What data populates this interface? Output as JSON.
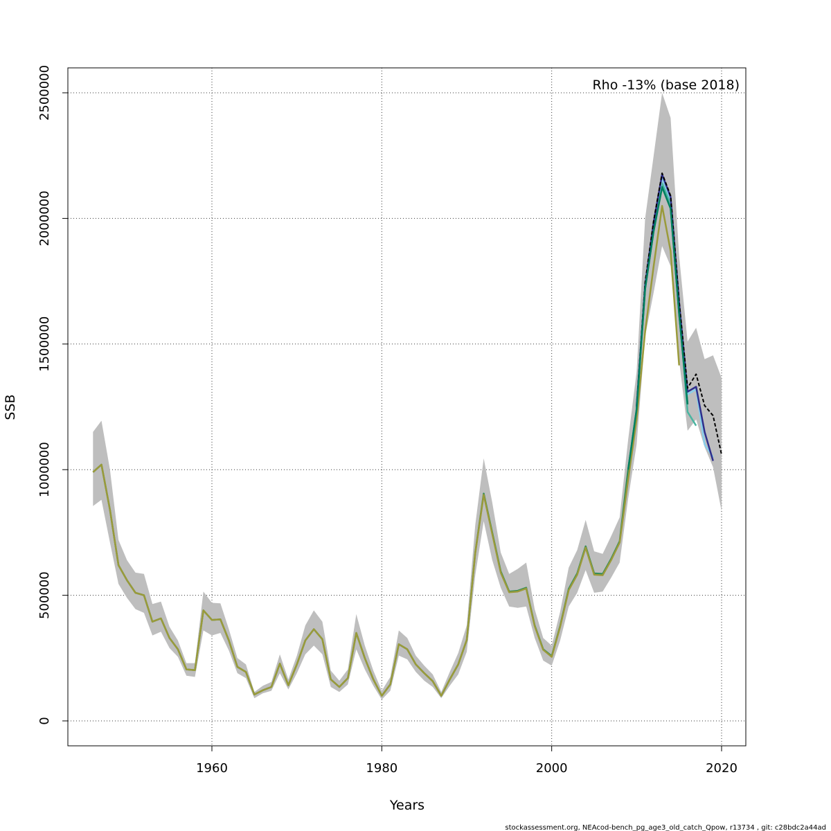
{
  "chart_data": {
    "type": "line",
    "xlabel": "Years",
    "ylabel": "SSB",
    "annotation": "Rho -13% (base 2018)",
    "footer": "stockassessment.org, NEAcod-bench_pg_age3_old_catch_Qpow, r13734 , git: c28bdc2a44ad",
    "xlim": [
      1946,
      2020
    ],
    "ylim": [
      -200000,
      2600000
    ],
    "x_ticks": [
      1960,
      1980,
      2000,
      2020
    ],
    "y_ticks": [
      0,
      500000,
      1000000,
      1500000,
      2000000,
      2500000
    ],
    "y_tick_labels": [
      "0",
      "500000",
      "1000000",
      "1500000",
      "2000000",
      "2500000"
    ],
    "grid": true,
    "band_color": "#bebebe",
    "years": [
      1946,
      1947,
      1948,
      1949,
      1950,
      1951,
      1952,
      1953,
      1954,
      1955,
      1956,
      1957,
      1958,
      1959,
      1960,
      1961,
      1962,
      1963,
      1964,
      1965,
      1966,
      1967,
      1968,
      1969,
      1970,
      1971,
      1972,
      1973,
      1974,
      1975,
      1976,
      1977,
      1978,
      1979,
      1980,
      1981,
      1982,
      1983,
      1984,
      1985,
      1986,
      1987,
      1988,
      1989,
      1990,
      1991,
      1992,
      1993,
      1994,
      1995,
      1996,
      1997,
      1998,
      1999,
      2000,
      2001,
      2002,
      2003,
      2004,
      2005,
      2006,
      2007,
      2008,
      2009,
      2010,
      2011,
      2012,
      2013,
      2014,
      2015,
      2016,
      2017,
      2018,
      2019,
      2020
    ],
    "upper": [
      1150000,
      1195000,
      1000000,
      720000,
      640000,
      590000,
      585000,
      465000,
      475000,
      375000,
      320000,
      230000,
      230000,
      515000,
      470000,
      468000,
      365000,
      250000,
      225000,
      115000,
      140000,
      155000,
      265000,
      165000,
      260000,
      380000,
      440000,
      395000,
      200000,
      160000,
      205000,
      425000,
      300000,
      200000,
      120000,
      175000,
      360000,
      330000,
      260000,
      220000,
      185000,
      115000,
      195000,
      270000,
      380000,
      780000,
      1045000,
      870000,
      670000,
      585000,
      605000,
      630000,
      445000,
      330000,
      300000,
      435000,
      610000,
      680000,
      800000,
      675000,
      665000,
      735000,
      810000,
      1120000,
      1390000,
      2000000,
      2250000,
      2500000,
      2400000,
      1850000,
      1510000,
      1565000,
      1440000,
      1455000,
      1365000
    ],
    "lower": [
      855000,
      880000,
      710000,
      545000,
      490000,
      445000,
      430000,
      340000,
      355000,
      290000,
      255000,
      180000,
      175000,
      360000,
      340000,
      350000,
      280000,
      190000,
      170000,
      90000,
      110000,
      120000,
      190000,
      125000,
      190000,
      265000,
      300000,
      265000,
      135000,
      115000,
      145000,
      285000,
      205000,
      140000,
      85000,
      120000,
      260000,
      245000,
      195000,
      160000,
      135000,
      90000,
      140000,
      185000,
      275000,
      580000,
      795000,
      640000,
      530000,
      455000,
      450000,
      455000,
      330000,
      240000,
      220000,
      320000,
      455000,
      510000,
      600000,
      510000,
      515000,
      570000,
      630000,
      885000,
      1100000,
      1530000,
      1705000,
      1890000,
      1810000,
      1435000,
      1155000,
      1200000,
      1090000,
      1010000,
      835000
    ],
    "series": [
      {
        "color": "#2e8b57",
        "x": [
          1946,
          1947,
          1948,
          1949,
          1950,
          1951,
          1952,
          1953,
          1954,
          1955,
          1956,
          1957,
          1958,
          1959,
          1960,
          1961,
          1962,
          1963,
          1964,
          1965,
          1966,
          1967,
          1968,
          1969,
          1970,
          1971,
          1972,
          1973,
          1974,
          1975,
          1976,
          1977,
          1978,
          1979,
          1980,
          1981,
          1982,
          1983,
          1984,
          1985,
          1986,
          1987,
          1988,
          1989,
          1990,
          1991,
          1992,
          1993,
          1994,
          1995,
          1996,
          1997,
          1998,
          1999,
          2000,
          2001,
          2002,
          2003,
          2004,
          2005,
          2006,
          2007,
          2008,
          2009,
          2010,
          2011,
          2012,
          2013,
          2014,
          2015,
          2016
        ],
        "y": [
          990000,
          1020000,
          840000,
          620000,
          560000,
          510000,
          500000,
          395000,
          408000,
          330000,
          285000,
          205000,
          202000,
          440000,
          402000,
          404000,
          320000,
          215000,
          195000,
          105000,
          122000,
          135000,
          228000,
          142000,
          225000,
          320000,
          365000,
          325000,
          165000,
          135000,
          170000,
          350000,
          250000,
          165000,
          100000,
          145000,
          305000,
          285000,
          225000,
          190000,
          158000,
          100000,
          165000,
          225000,
          322000,
          670000,
          905000,
          750000,
          595000,
          515000,
          518000,
          530000,
          380000,
          285000,
          258000,
          378000,
          525000,
          587000,
          695000,
          587000,
          585000,
          645000,
          715000,
          1000000,
          1240000,
          1720000,
          1950000,
          2125000,
          2040000,
          1620000,
          1260000
        ]
      },
      {
        "color": "#9a9a3a",
        "x": [
          1946,
          1947,
          1948,
          1949,
          1950,
          1951,
          1952,
          1953,
          1954,
          1955,
          1956,
          1957,
          1958,
          1959,
          1960,
          1961,
          1962,
          1963,
          1964,
          1965,
          1966,
          1967,
          1968,
          1969,
          1970,
          1971,
          1972,
          1973,
          1974,
          1975,
          1976,
          1977,
          1978,
          1979,
          1980,
          1981,
          1982,
          1983,
          1984,
          1985,
          1986,
          1987,
          1988,
          1989,
          1990,
          1991,
          1992,
          1993,
          1994,
          1995,
          1996,
          1997,
          1998,
          1999,
          2000,
          2001,
          2002,
          2003,
          2004,
          2005,
          2006,
          2007,
          2008,
          2009,
          2010,
          2011,
          2012,
          2013,
          2014,
          2015
        ],
        "y": [
          990000,
          1020000,
          840000,
          620000,
          560000,
          510000,
          500000,
          395000,
          408000,
          330000,
          285000,
          205000,
          202000,
          440000,
          402000,
          404000,
          320000,
          215000,
          195000,
          105000,
          122000,
          135000,
          228000,
          142000,
          225000,
          320000,
          365000,
          325000,
          165000,
          135000,
          170000,
          350000,
          250000,
          165000,
          100000,
          145000,
          305000,
          285000,
          225000,
          190000,
          158000,
          100000,
          165000,
          225000,
          322000,
          668000,
          900000,
          745000,
          590000,
          512000,
          515000,
          527000,
          378000,
          283000,
          255000,
          375000,
          520000,
          582000,
          690000,
          582000,
          580000,
          640000,
          710000,
          960000,
          1200000,
          1550000,
          1810000,
          2050000,
          1870000,
          1415000
        ]
      },
      {
        "color": "#4ab5a0",
        "x": [
          2010,
          2011,
          2012,
          2013,
          2014,
          2015,
          2016,
          2017
        ],
        "y": [
          1250000,
          1730000,
          1965000,
          2140000,
          2060000,
          1640000,
          1230000,
          1175000
        ]
      },
      {
        "color": "#87ceeb",
        "x": [
          2010,
          2011,
          2012,
          2013,
          2014,
          2015,
          2016,
          2017,
          2018,
          2019
        ],
        "y": [
          1255000,
          1740000,
          1980000,
          2160000,
          2075000,
          1660000,
          1300000,
          1320000,
          1100000,
          1050000
        ]
      },
      {
        "color": "#2e2e8b",
        "x": [
          2010,
          2011,
          2012,
          2013,
          2014,
          2015,
          2016,
          2017,
          2018,
          2019
        ],
        "y": [
          1250000,
          1735000,
          1985000,
          2175000,
          2085000,
          1665000,
          1310000,
          1330000,
          1150000,
          1035000
        ]
      },
      {
        "color": "#000000",
        "dashed": true,
        "x": [
          2010,
          2011,
          2012,
          2013,
          2014,
          2015,
          2016,
          2017,
          2018,
          2019,
          2020
        ],
        "y": [
          1255000,
          1745000,
          1990000,
          2180000,
          2090000,
          1670000,
          1325000,
          1380000,
          1255000,
          1215000,
          1060000
        ]
      },
      {
        "color": "#008060",
        "x": [
          2009,
          2010,
          2011,
          2012,
          2013,
          2014,
          2015,
          2016
        ],
        "y": [
          1000000,
          1240000,
          1720000,
          1950000,
          2125000,
          2040000,
          1620000,
          1260000
        ]
      }
    ]
  }
}
